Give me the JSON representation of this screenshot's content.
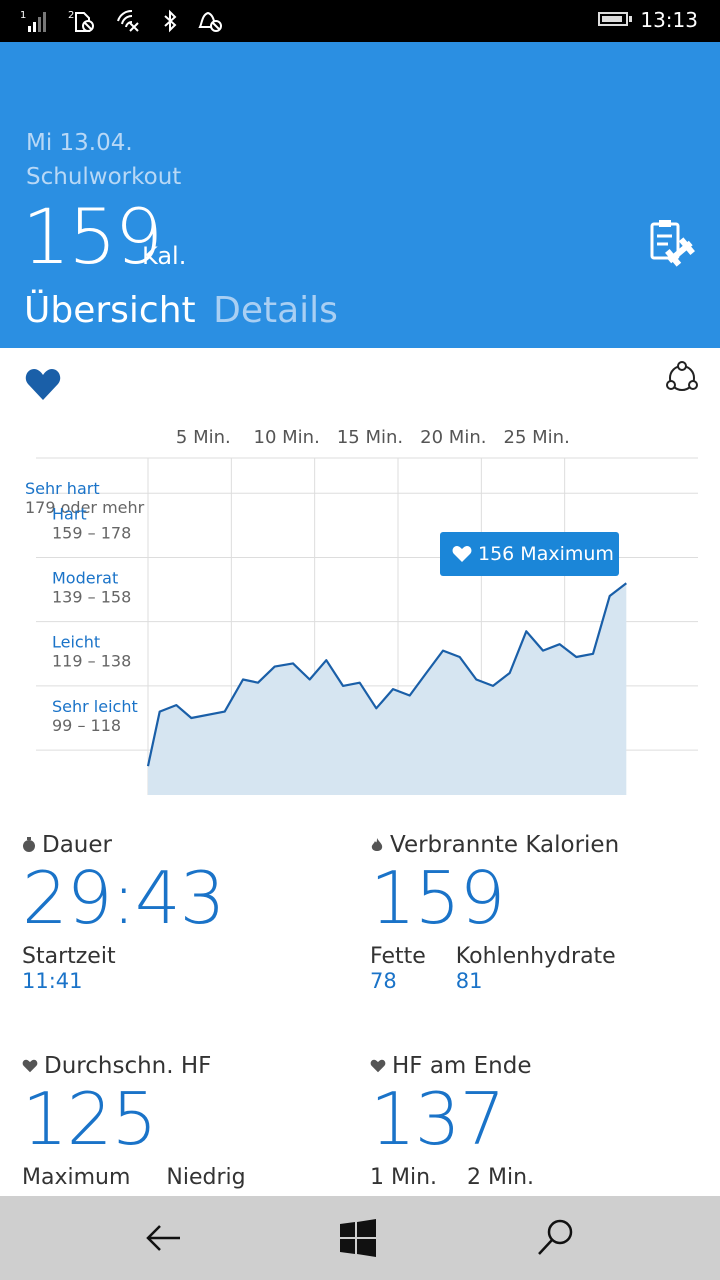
{
  "status_bar": {
    "time": "13:13",
    "sim1": "1",
    "sim2": "2"
  },
  "header": {
    "date": "Mi 13.04.",
    "workout_name": "Schulworkout",
    "calories": "159",
    "calories_unit": "Kal.",
    "tab_overview": "Übersicht",
    "tab_details": "Details",
    "colors": {
      "background": "#2b8fe2"
    }
  },
  "chart_data": {
    "type": "area",
    "x_ticks": [
      "5 Min.",
      "10 Min.",
      "15 Min.",
      "20 Min.",
      "25 Min."
    ],
    "zones": [
      {
        "name": "Sehr hart",
        "range": "179 oder mehr"
      },
      {
        "name": "Hart",
        "range": "159 – 178"
      },
      {
        "name": "Moderat",
        "range": "139 – 158"
      },
      {
        "name": "Leicht",
        "range": "119 – 138"
      },
      {
        "name": "Sehr leicht",
        "range": "99 – 118"
      }
    ],
    "x_minutes": [
      0,
      0.7,
      1.7,
      2.6,
      4.6,
      5.7,
      6.6,
      7.6,
      8.7,
      9.7,
      10.7,
      11.7,
      12.7,
      13.7,
      14.7,
      15.7,
      16.7,
      17.7,
      18.7,
      19.7,
      20.7,
      21.7,
      22.7,
      23.7,
      24.7,
      25.7,
      26.7,
      27.7,
      28.7
    ],
    "bpm": [
      94,
      111,
      113,
      109,
      111,
      121,
      120,
      125,
      126,
      121,
      127,
      119,
      120,
      112,
      118,
      116,
      123,
      130,
      128,
      121,
      119,
      123,
      136,
      130,
      132,
      128,
      129,
      147,
      151
    ],
    "y_range": [
      85,
      190
    ],
    "x_range": [
      0,
      33
    ],
    "max_label": "156 Maximum",
    "colors": {
      "line": "#1a5fa8",
      "fill": "#d6e5f1",
      "grid": "#dddddd",
      "tooltip": "#1b86d8"
    }
  },
  "stats": {
    "duration": {
      "label": "Dauer",
      "value": "29:43",
      "sub1_label": "Startzeit",
      "sub1_value": "11:41"
    },
    "burned": {
      "label": "Verbrannte Kalorien",
      "value": "159",
      "sub1_label": "Fette",
      "sub1_value": "78",
      "sub2_label": "Kohlenhydrate",
      "sub2_value": "81"
    },
    "avg_hr": {
      "label": "Durchschn. HF",
      "value": "125",
      "sub1_label": "Maximum",
      "sub2_label": "Niedrig"
    },
    "end_hr": {
      "label": "HF am Ende",
      "value": "137",
      "sub1_label": "1 Min.",
      "sub2_label": "2 Min."
    }
  }
}
